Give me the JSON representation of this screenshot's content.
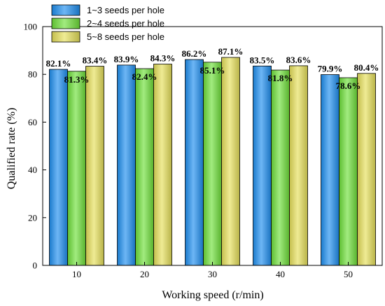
{
  "chart_data": {
    "type": "bar",
    "title": "",
    "xlabel": "Working speed (r/min)",
    "ylabel": "Qualified rate (%)",
    "ylim": [
      0,
      100
    ],
    "yticks": [
      0,
      20,
      40,
      60,
      80,
      100
    ],
    "categories": [
      "10",
      "20",
      "30",
      "40",
      "50"
    ],
    "series": [
      {
        "name": "1~3 seeds per hole",
        "color": "#1f8ff0",
        "values": [
          82.1,
          83.9,
          86.2,
          83.5,
          79.9
        ],
        "labels": [
          "82.1%",
          "83.9%",
          "86.2%",
          "83.5%",
          "79.9%"
        ]
      },
      {
        "name": "2~4 seeds per hole",
        "color": "#6fe03a",
        "values": [
          81.3,
          82.4,
          85.1,
          81.8,
          78.6
        ],
        "labels": [
          "81.3%",
          "82.4%",
          "85.1%",
          "81.8%",
          "78.6%"
        ]
      },
      {
        "name": "5~8 seeds per hole",
        "color": "#e6e05a",
        "values": [
          83.4,
          84.3,
          87.1,
          83.6,
          80.4
        ],
        "labels": [
          "83.4%",
          "84.3%",
          "87.1%",
          "83.6%",
          "80.4%"
        ]
      }
    ],
    "legend_position": "top-left",
    "grid": false
  }
}
